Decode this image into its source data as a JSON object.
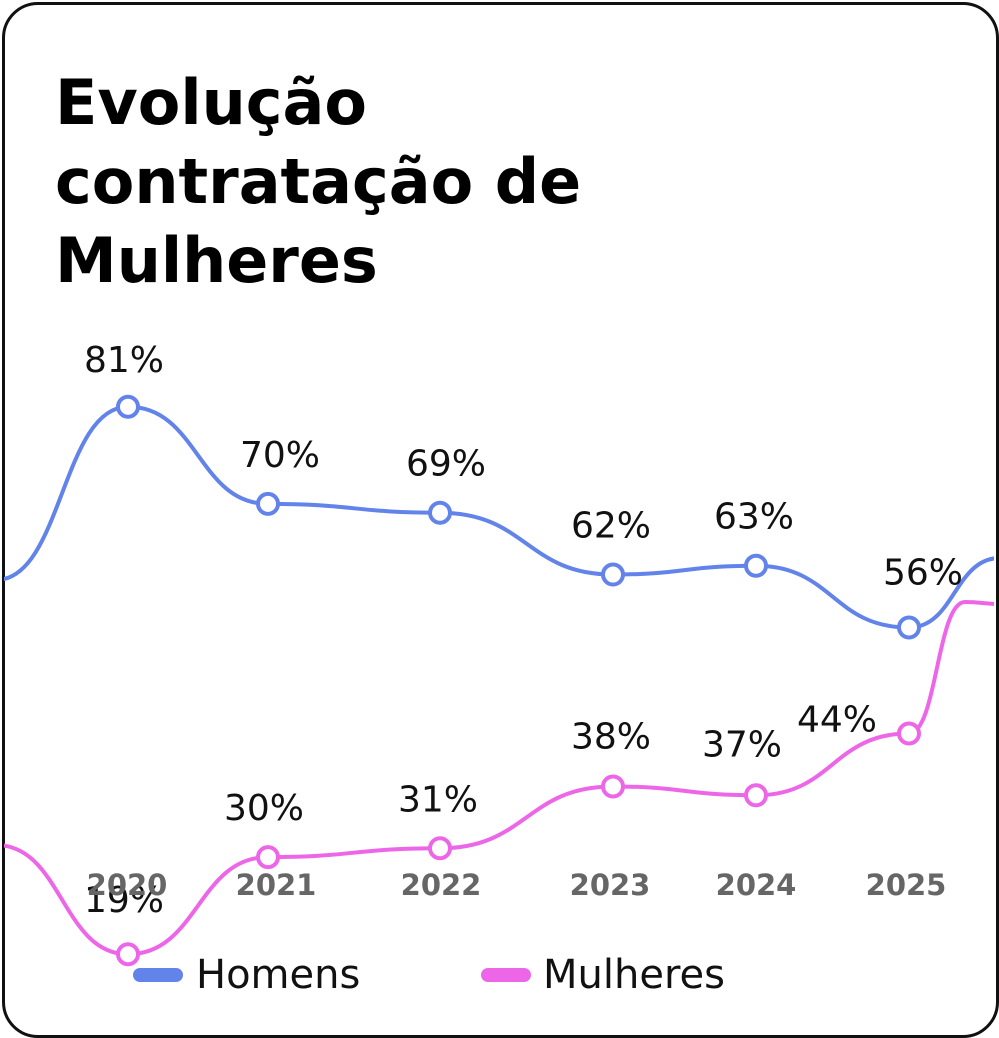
{
  "colors": {
    "homens": "#6283ea",
    "mulheres": "#ee66e8"
  },
  "chart_data": {
    "type": "line",
    "title": "Evolução contratação de Mulheres",
    "title_lines": [
      "Evolução",
      "contratação de",
      "Mulheres"
    ],
    "categories": [
      "2020",
      "2021",
      "2022",
      "2023",
      "2024",
      "2025"
    ],
    "series": [
      {
        "name": "Homens",
        "values": [
          81,
          70,
          69,
          62,
          63,
          56
        ],
        "labels": [
          "81%",
          "70%",
          "69%",
          "62%",
          "63%",
          "56%"
        ]
      },
      {
        "name": "Mulheres",
        "values": [
          19,
          30,
          31,
          38,
          37,
          44
        ],
        "labels": [
          "19%",
          "30%",
          "31%",
          "38%",
          "37%",
          "44%"
        ]
      }
    ],
    "legend": "bottom",
    "grid": false
  }
}
